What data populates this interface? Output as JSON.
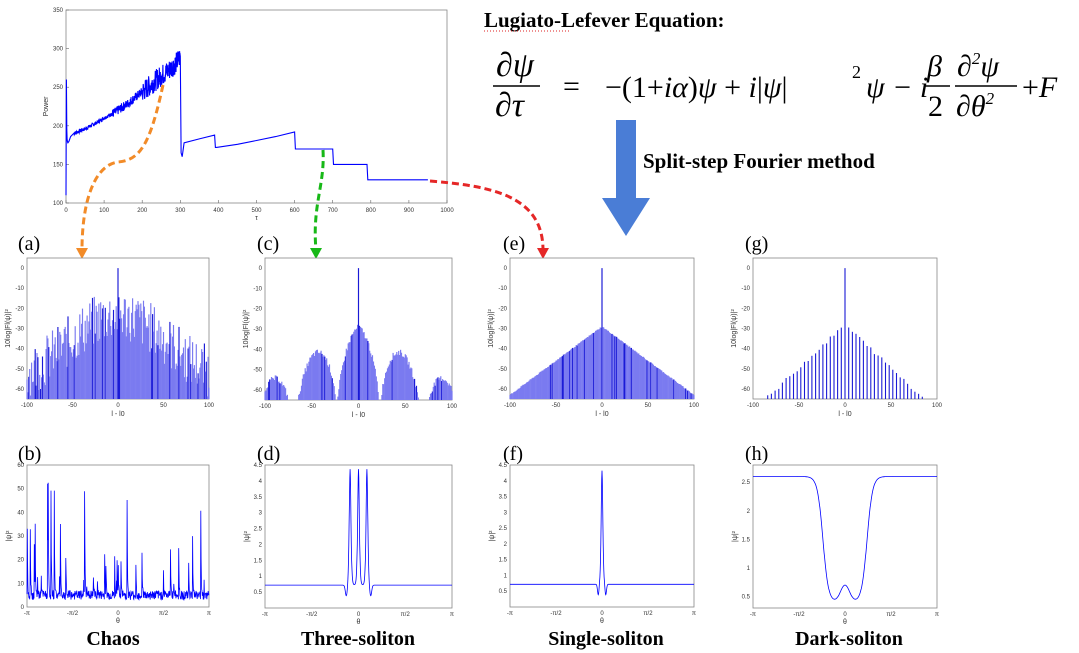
{
  "header": {
    "equation_title": "Lugiato-Lefever Equation:",
    "method_label": "Split-step Fourier method"
  },
  "panel_labels": [
    "(a)",
    "(b)",
    "(c)",
    "(d)",
    "(e)",
    "(f)",
    "(g)",
    "(h)"
  ],
  "bottom_labels": [
    "Chaos",
    "Three-soliton",
    "Single-soliton",
    "Dark-soliton"
  ],
  "colors": {
    "trace": "#0000ff",
    "spectrum_fill": "#7a7af0",
    "spectrum_line": "#1a1ad6",
    "arrow_orange": "#f28b28",
    "arrow_green": "#17b817",
    "arrow_red": "#e52727",
    "big_arrow": "#4a7dd6"
  },
  "chart_data": [
    {
      "type": "line",
      "id": "power-vs-tau",
      "xlabel": "τ",
      "ylabel": "Power",
      "xlim": [
        0,
        1000
      ],
      "ylim": [
        100,
        350
      ],
      "xticks": [
        0,
        100,
        200,
        300,
        400,
        500,
        600,
        700,
        800,
        900,
        1000
      ],
      "yticks": [
        100,
        150,
        200,
        250,
        300,
        350
      ],
      "series": [
        {
          "x": [
            0,
            1,
            2,
            3,
            4,
            5,
            8,
            12,
            20,
            30,
            50,
            80,
            100,
            130,
            160,
            190,
            220,
            250,
            270,
            290,
            300,
            302,
            305,
            310,
            350,
            390,
            392,
            395,
            450,
            500,
            550,
            600,
            602,
            605,
            650,
            700,
            702,
            705,
            750,
            790,
            792,
            795,
            850,
            900,
            950
          ],
          "y": [
            110,
            260,
            195,
            183,
            179,
            178,
            180,
            186,
            190,
            192,
            196,
            204,
            210,
            218,
            228,
            240,
            252,
            265,
            272,
            282,
            290,
            165,
            160,
            178,
            183,
            188,
            172,
            172,
            176,
            181,
            186,
            192,
            170,
            170,
            170,
            170,
            150,
            150,
            150,
            150,
            130,
            130,
            130,
            130,
            130
          ]
        }
      ]
    },
    {
      "type": "bar",
      "id": "spectrum-chaos",
      "xlabel": "l - l0",
      "ylabel": "10log|Fl(ψ)|²",
      "xlim": [
        -100,
        100
      ],
      "ylim": [
        -65,
        5
      ],
      "xticks": [
        -100,
        -50,
        0,
        50,
        100
      ],
      "yticks": [
        0,
        -10,
        -20,
        -30,
        -40,
        -50,
        -60
      ]
    },
    {
      "type": "bar",
      "id": "spectrum-three-soliton",
      "xlabel": "l - l0",
      "ylabel": "10log|Fl(ψ)|²",
      "xlim": [
        -100,
        100
      ],
      "ylim": [
        -65,
        5
      ],
      "xticks": [
        -100,
        -50,
        0,
        50,
        100
      ],
      "yticks": [
        0,
        -10,
        -20,
        -30,
        -40,
        -50,
        -60
      ]
    },
    {
      "type": "bar",
      "id": "spectrum-single-soliton",
      "xlabel": "l - l0",
      "ylabel": "10log|Fl(ψ)|²",
      "xlim": [
        -100,
        100
      ],
      "ylim": [
        -65,
        5
      ],
      "xticks": [
        -100,
        -50,
        0,
        50,
        100
      ],
      "yticks": [
        0,
        -10,
        -20,
        -30,
        -40,
        -50,
        -60
      ]
    },
    {
      "type": "bar",
      "id": "spectrum-dark-soliton",
      "xlabel": "l - l0",
      "ylabel": "10log|Fl(ψ)|²",
      "xlim": [
        -100,
        100
      ],
      "ylim": [
        -65,
        5
      ],
      "xticks": [
        -100,
        -50,
        0,
        50,
        100
      ],
      "yticks": [
        0,
        -10,
        -20,
        -30,
        -40,
        -50,
        -60
      ]
    },
    {
      "type": "line",
      "id": "field-chaos",
      "xlabel": "θ",
      "ylabel": "|ψ|²",
      "xticks": [
        "-π",
        "-π/2",
        "0",
        "π/2",
        "π"
      ],
      "ylim": [
        0,
        60
      ],
      "yticks": [
        0,
        10,
        20,
        30,
        40,
        50,
        60
      ]
    },
    {
      "type": "line",
      "id": "field-three-soliton",
      "xlabel": "θ",
      "ylabel": "|ψ|²",
      "xticks": [
        "-π",
        "-π/2",
        "0",
        "π/2",
        "π"
      ],
      "ylim": [
        0,
        4.5
      ],
      "yticks": [
        0.5,
        1,
        1.5,
        2,
        2.5,
        3,
        3.5,
        4,
        4.5
      ]
    },
    {
      "type": "line",
      "id": "field-single-soliton",
      "xlabel": "θ",
      "ylabel": "|ψ|²",
      "xticks": [
        "-π",
        "-π/2",
        "0",
        "π/2",
        "π"
      ],
      "ylim": [
        0,
        4.5
      ],
      "yticks": [
        0.5,
        1,
        1.5,
        2,
        2.5,
        3,
        3.5,
        4,
        4.5
      ]
    },
    {
      "type": "line",
      "id": "field-dark-soliton",
      "xlabel": "θ",
      "ylabel": "|ψ|²",
      "xticks": [
        "-π",
        "-π/2",
        "0",
        "π/2",
        "π"
      ],
      "ylim": [
        0.3,
        2.8
      ],
      "yticks": [
        0.5,
        1,
        1.5,
        2,
        2.5
      ]
    }
  ]
}
